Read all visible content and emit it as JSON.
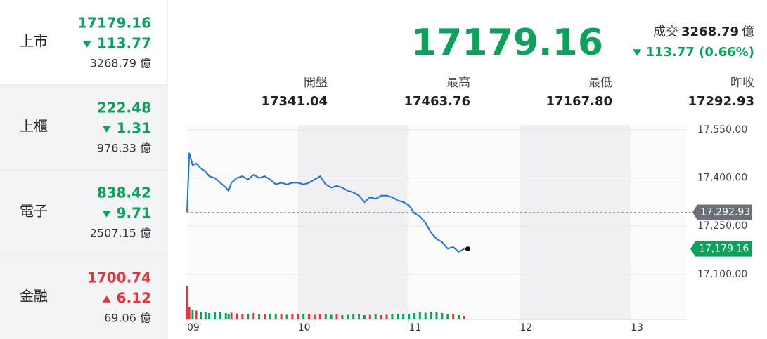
{
  "sidebar": {
    "items": [
      {
        "name": "上市",
        "price": "17179.16",
        "change": "113.77",
        "volume": "3268.79 億",
        "direction": "down"
      },
      {
        "name": "上櫃",
        "price": "222.48",
        "change": "1.31",
        "volume": "976.33 億",
        "direction": "down"
      },
      {
        "name": "電子",
        "price": "838.42",
        "change": "9.71",
        "volume": "2507.15 億",
        "direction": "down"
      },
      {
        "name": "金融",
        "price": "1700.74",
        "change": "6.12",
        "volume": "69.06 億",
        "direction": "up"
      }
    ]
  },
  "header": {
    "price": "17179.16",
    "volume_label": "成交",
    "volume": "3268.79",
    "volume_unit": "億",
    "change": "113.77 (0.66%)",
    "direction": "down"
  },
  "stats": [
    {
      "label": "開盤",
      "value": "17341.04"
    },
    {
      "label": "最高",
      "value": "17463.76"
    },
    {
      "label": "最低",
      "value": "17167.80"
    },
    {
      "label": "昨收",
      "value": "17292.93"
    }
  ],
  "colors": {
    "up": "#e8323c",
    "down": "#0aa35a"
  },
  "chart_data": {
    "type": "line",
    "color": "#1a73e8",
    "x": [
      9.0,
      9.02,
      9.05,
      9.083,
      9.125,
      9.167,
      9.2,
      9.25,
      9.3,
      9.35,
      9.375,
      9.4,
      9.45,
      9.5,
      9.55,
      9.6,
      9.65,
      9.7,
      9.75,
      9.8,
      9.85,
      9.9,
      9.95,
      10.0,
      10.05,
      10.1,
      10.15,
      10.2,
      10.25,
      10.3,
      10.35,
      10.4,
      10.45,
      10.5,
      10.55,
      10.6,
      10.65,
      10.7,
      10.75,
      10.8,
      10.85,
      10.9,
      10.95,
      11.0,
      11.05,
      11.1,
      11.15,
      11.2,
      11.25,
      11.3,
      11.35,
      11.4,
      11.45,
      11.5
    ],
    "values": [
      17294,
      17478,
      17440,
      17445,
      17430,
      17420,
      17405,
      17400,
      17385,
      17370,
      17360,
      17385,
      17400,
      17405,
      17395,
      17410,
      17400,
      17405,
      17395,
      17380,
      17385,
      17380,
      17385,
      17385,
      17380,
      17385,
      17395,
      17405,
      17380,
      17370,
      17375,
      17370,
      17360,
      17355,
      17345,
      17325,
      17340,
      17335,
      17345,
      17345,
      17340,
      17330,
      17325,
      17315,
      17290,
      17280,
      17260,
      17230,
      17210,
      17200,
      17180,
      17185,
      17170,
      17179.16
    ],
    "volume": [
      95,
      35,
      28,
      25,
      22,
      20,
      18,
      20,
      22,
      18,
      16,
      19,
      17,
      15,
      16,
      18,
      14,
      15,
      16,
      14,
      15,
      13,
      14,
      15,
      14,
      16,
      13,
      14,
      15,
      13,
      14,
      12,
      13,
      14,
      15,
      12,
      13,
      14,
      12,
      13,
      14,
      15,
      14,
      16,
      18,
      20,
      19,
      22,
      20,
      18,
      16,
      15,
      12,
      10
    ],
    "volume_lim": [
      0,
      100
    ],
    "xlim": [
      9,
      13.5
    ],
    "xticks": [
      {
        "value": 9,
        "label": "09"
      },
      {
        "value": 10,
        "label": "10"
      },
      {
        "value": 11,
        "label": "11"
      },
      {
        "value": 12,
        "label": "12"
      },
      {
        "value": 13,
        "label": "13"
      }
    ],
    "ylim": [
      17080,
      17565
    ],
    "yticks": [
      {
        "value": 17550,
        "label": "17,550.00"
      },
      {
        "value": 17400,
        "label": "17,400.00"
      },
      {
        "value": 17250,
        "label": "17,250.00"
      },
      {
        "value": 17100,
        "label": "17,100.00"
      }
    ],
    "reference": {
      "value": 17292.93,
      "label": "17,292.93"
    },
    "last": {
      "value": 17179.16,
      "label": "17,179.16"
    }
  }
}
